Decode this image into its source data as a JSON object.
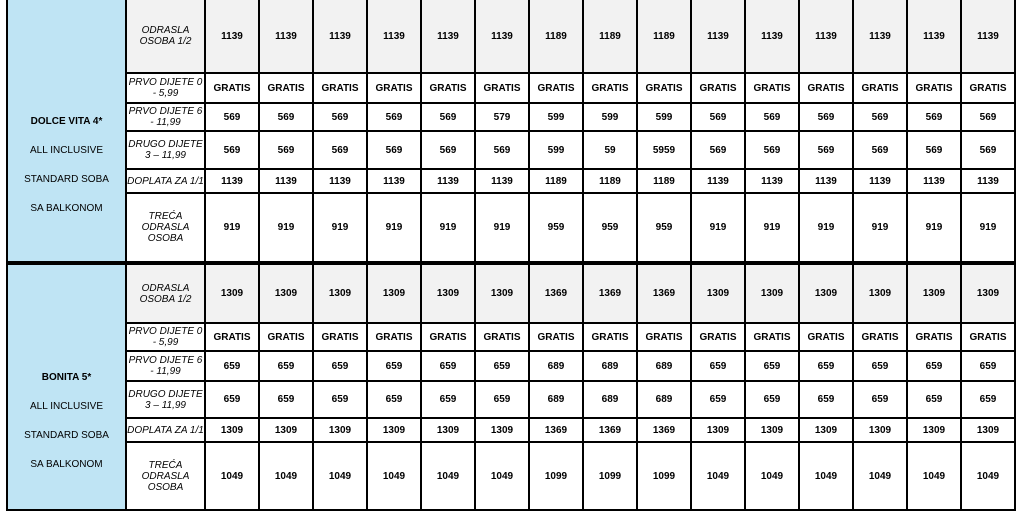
{
  "hotels": [
    {
      "lines": [
        "DOLCE VITA 4*",
        "ALL INCLUSIVE",
        "STANDARD SOBA",
        "SA BALKONOM"
      ],
      "rows": [
        {
          "label": "ODRASLA OSOBA 1/2",
          "values": [
            "1139",
            "1139",
            "1139",
            "1139",
            "1139",
            "1139",
            "1189",
            "1189",
            "1189",
            "1139",
            "1139",
            "1139",
            "1139",
            "1139",
            "1139"
          ]
        },
        {
          "label": "PRVO DIJETE 0 - 5,99",
          "values": [
            "GRATIS",
            "GRATIS",
            "GRATIS",
            "GRATIS",
            "GRATIS",
            "GRATIS",
            "GRATIS",
            "GRATIS",
            "GRATIS",
            "GRATIS",
            "GRATIS",
            "GRATIS",
            "GRATIS",
            "GRATIS",
            "GRATIS"
          ]
        },
        {
          "label": "PRVO DIJETE 6 - 11,99",
          "values": [
            "569",
            "569",
            "569",
            "569",
            "569",
            "579",
            "599",
            "599",
            "599",
            "569",
            "569",
            "569",
            "569",
            "569",
            "569"
          ]
        },
        {
          "label": "DRUGO DIJETE 3 – 11,99",
          "values": [
            "569",
            "569",
            "569",
            "569",
            "569",
            "569",
            "599",
            "59",
            "5959",
            "569",
            "569",
            "569",
            "569",
            "569",
            "569"
          ]
        },
        {
          "label": "DOPLATA ZA 1/1",
          "values": [
            "1139",
            "1139",
            "1139",
            "1139",
            "1139",
            "1139",
            "1189",
            "1189",
            "1189",
            "1139",
            "1139",
            "1139",
            "1139",
            "1139",
            "1139"
          ]
        },
        {
          "label": "TREĆA ODRASLA OSOBA",
          "values": [
            "919",
            "919",
            "919",
            "919",
            "919",
            "919",
            "959",
            "959",
            "959",
            "919",
            "919",
            "919",
            "919",
            "919",
            "919"
          ]
        }
      ]
    },
    {
      "lines": [
        "BONITA 5*",
        "ALL INCLUSIVE",
        "STANDARD SOBA",
        "SA BALKONOM"
      ],
      "rows": [
        {
          "label": "ODRASLA OSOBA 1/2",
          "values": [
            "1309",
            "1309",
            "1309",
            "1309",
            "1309",
            "1309",
            "1369",
            "1369",
            "1369",
            "1309",
            "1309",
            "1309",
            "1309",
            "1309",
            "1309"
          ]
        },
        {
          "label": "PRVO DIJETE 0 - 5,99",
          "values": [
            "GRATIS",
            "GRATIS",
            "GRATIS",
            "GRATIS",
            "GRATIS",
            "GRATIS",
            "GRATIS",
            "GRATIS",
            "GRATIS",
            "GRATIS",
            "GRATIS",
            "GRATIS",
            "GRATIS",
            "GRATIS",
            "GRATIS"
          ]
        },
        {
          "label": "PRVO DIJETE 6 - 11,99",
          "values": [
            "659",
            "659",
            "659",
            "659",
            "659",
            "659",
            "689",
            "689",
            "689",
            "659",
            "659",
            "659",
            "659",
            "659",
            "659"
          ]
        },
        {
          "label": "DRUGO DIJETE 3 – 11,99",
          "values": [
            "659",
            "659",
            "659",
            "659",
            "659",
            "659",
            "689",
            "689",
            "689",
            "659",
            "659",
            "659",
            "659",
            "659",
            "659"
          ]
        },
        {
          "label": "DOPLATA ZA 1/1",
          "values": [
            "1309",
            "1309",
            "1309",
            "1309",
            "1309",
            "1309",
            "1369",
            "1369",
            "1369",
            "1309",
            "1309",
            "1309",
            "1309",
            "1309",
            "1309"
          ]
        },
        {
          "label": "TREĆA ODRASLA OSOBA",
          "values": [
            "1049",
            "1049",
            "1049",
            "1049",
            "1049",
            "1049",
            "1099",
            "1099",
            "1099",
            "1049",
            "1049",
            "1049",
            "1049",
            "1049",
            "1049"
          ]
        }
      ]
    }
  ]
}
